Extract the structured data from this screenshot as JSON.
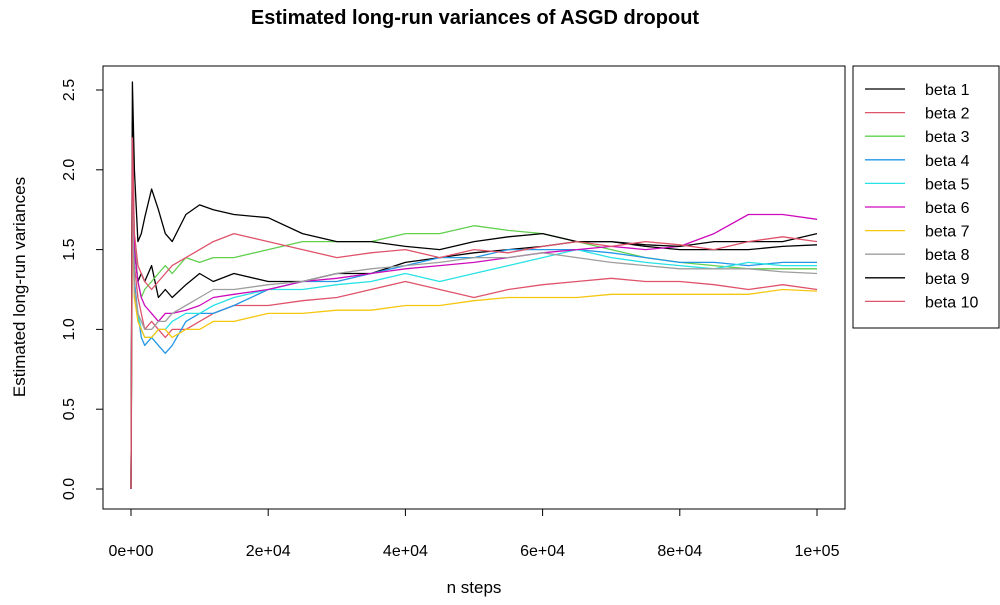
{
  "chart_data": {
    "type": "line",
    "title": "Estimated long-run variances of ASGD dropout",
    "xlabel": "n steps",
    "ylabel": "Estimated long-run variances",
    "xlim": [
      0,
      100000
    ],
    "ylim": [
      0.0,
      2.5
    ],
    "x_ticks": [
      0,
      20000,
      40000,
      60000,
      80000,
      100000
    ],
    "x_tick_labels": [
      "0e+00",
      "2e+04",
      "4e+04",
      "6e+04",
      "8e+04",
      "1e+05"
    ],
    "y_ticks": [
      0.0,
      0.5,
      1.0,
      1.5,
      2.0,
      2.5
    ],
    "y_tick_labels": [
      "0.0",
      "0.5",
      "1.0",
      "1.5",
      "2.0",
      "2.5"
    ],
    "grid": false,
    "legend_position": "right",
    "x": [
      0,
      200,
      500,
      1000,
      1500,
      2000,
      3000,
      4000,
      5000,
      6000,
      8000,
      10000,
      12000,
      15000,
      20000,
      25000,
      30000,
      35000,
      40000,
      45000,
      50000,
      55000,
      60000,
      65000,
      70000,
      75000,
      80000,
      85000,
      90000,
      95000,
      100000
    ],
    "series": [
      {
        "name": "beta 1",
        "color": "#000000",
        "values": [
          0.0,
          2.3,
          1.5,
          1.3,
          1.35,
          1.3,
          1.4,
          1.2,
          1.25,
          1.2,
          1.28,
          1.35,
          1.3,
          1.35,
          1.3,
          1.3,
          1.35,
          1.35,
          1.42,
          1.45,
          1.48,
          1.5,
          1.52,
          1.55,
          1.55,
          1.52,
          1.5,
          1.5,
          1.5,
          1.52,
          1.53
        ]
      },
      {
        "name": "beta 2",
        "color": "#DF536B",
        "values": [
          0.0,
          2.2,
          1.4,
          1.2,
          1.1,
          1.0,
          1.05,
          1.0,
          0.95,
          1.0,
          1.0,
          1.05,
          1.1,
          1.15,
          1.15,
          1.18,
          1.2,
          1.25,
          1.3,
          1.25,
          1.2,
          1.25,
          1.28,
          1.3,
          1.32,
          1.3,
          1.3,
          1.28,
          1.25,
          1.28,
          1.25
        ]
      },
      {
        "name": "beta 3",
        "color": "#61D04F",
        "values": [
          0.0,
          2.1,
          1.55,
          1.3,
          1.2,
          1.25,
          1.3,
          1.35,
          1.4,
          1.35,
          1.45,
          1.42,
          1.45,
          1.45,
          1.5,
          1.55,
          1.55,
          1.55,
          1.6,
          1.6,
          1.65,
          1.62,
          1.6,
          1.55,
          1.5,
          1.45,
          1.42,
          1.4,
          1.38,
          1.38,
          1.38
        ]
      },
      {
        "name": "beta 4",
        "color": "#2297E6",
        "values": [
          0.0,
          2.0,
          1.3,
          1.1,
          0.95,
          0.9,
          0.95,
          0.9,
          0.85,
          0.9,
          1.05,
          1.1,
          1.1,
          1.15,
          1.25,
          1.3,
          1.3,
          1.35,
          1.4,
          1.45,
          1.45,
          1.5,
          1.5,
          1.5,
          1.48,
          1.45,
          1.42,
          1.42,
          1.4,
          1.42,
          1.42
        ]
      },
      {
        "name": "beta 5",
        "color": "#28E2E5",
        "values": [
          0.0,
          1.9,
          1.2,
          1.1,
          1.0,
          0.95,
          0.95,
          1.0,
          1.0,
          1.05,
          1.1,
          1.1,
          1.15,
          1.2,
          1.25,
          1.25,
          1.28,
          1.3,
          1.35,
          1.3,
          1.35,
          1.4,
          1.45,
          1.5,
          1.45,
          1.42,
          1.4,
          1.38,
          1.42,
          1.4,
          1.4
        ]
      },
      {
        "name": "beta 6",
        "color": "#CD0BBC",
        "values": [
          0.0,
          2.0,
          1.5,
          1.3,
          1.2,
          1.15,
          1.1,
          1.05,
          1.1,
          1.1,
          1.12,
          1.15,
          1.2,
          1.22,
          1.25,
          1.3,
          1.32,
          1.35,
          1.38,
          1.4,
          1.42,
          1.45,
          1.48,
          1.5,
          1.52,
          1.5,
          1.52,
          1.6,
          1.72,
          1.72,
          1.69
        ]
      },
      {
        "name": "beta 7",
        "color": "#F5C710",
        "values": [
          0.0,
          1.7,
          1.2,
          1.05,
          1.0,
          0.95,
          0.95,
          1.0,
          1.0,
          0.95,
          1.0,
          1.0,
          1.05,
          1.05,
          1.1,
          1.1,
          1.12,
          1.12,
          1.15,
          1.15,
          1.18,
          1.2,
          1.2,
          1.2,
          1.22,
          1.22,
          1.22,
          1.22,
          1.22,
          1.25,
          1.24
        ]
      },
      {
        "name": "beta 8",
        "color": "#9E9E9E",
        "values": [
          0.0,
          1.8,
          1.25,
          1.1,
          1.05,
          1.0,
          1.0,
          1.05,
          1.05,
          1.1,
          1.15,
          1.2,
          1.25,
          1.25,
          1.28,
          1.3,
          1.35,
          1.38,
          1.4,
          1.42,
          1.45,
          1.45,
          1.48,
          1.45,
          1.42,
          1.4,
          1.38,
          1.38,
          1.38,
          1.36,
          1.35
        ]
      },
      {
        "name": "beta 9",
        "color": "#000000",
        "values": [
          0.0,
          2.55,
          2.0,
          1.55,
          1.6,
          1.7,
          1.88,
          1.75,
          1.6,
          1.55,
          1.72,
          1.78,
          1.75,
          1.72,
          1.7,
          1.6,
          1.55,
          1.55,
          1.52,
          1.5,
          1.55,
          1.58,
          1.6,
          1.55,
          1.55,
          1.53,
          1.52,
          1.55,
          1.55,
          1.55,
          1.6
        ]
      },
      {
        "name": "beta 10",
        "color": "#DF536B",
        "values": [
          0.0,
          2.2,
          1.6,
          1.4,
          1.35,
          1.3,
          1.25,
          1.3,
          1.35,
          1.4,
          1.45,
          1.5,
          1.55,
          1.6,
          1.55,
          1.5,
          1.45,
          1.48,
          1.5,
          1.45,
          1.5,
          1.48,
          1.52,
          1.55,
          1.52,
          1.55,
          1.53,
          1.5,
          1.55,
          1.58,
          1.55
        ]
      }
    ]
  }
}
